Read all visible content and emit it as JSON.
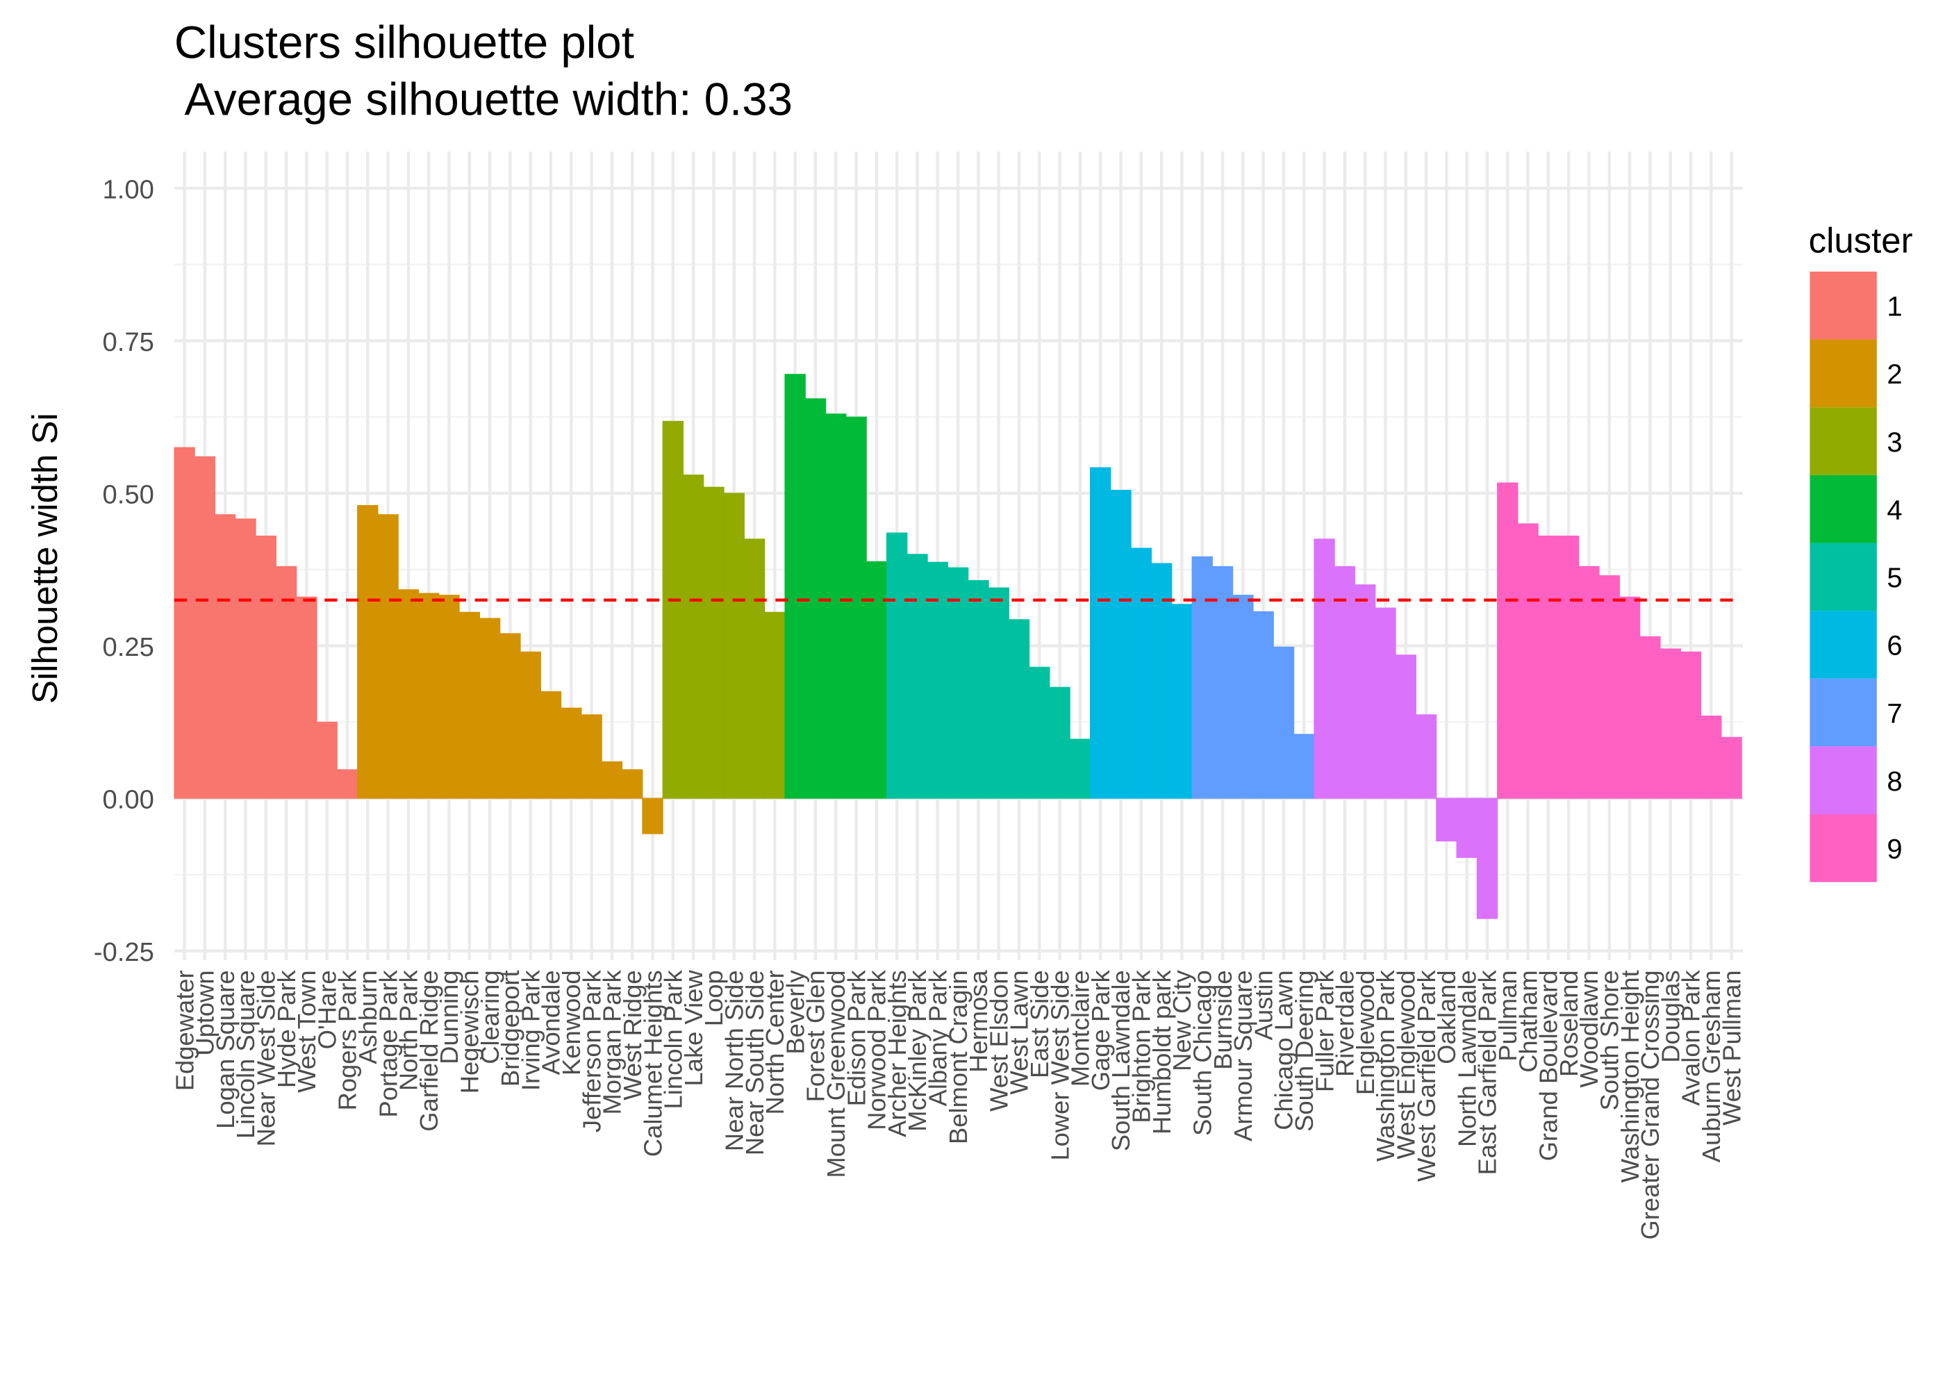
{
  "chart_data": {
    "type": "bar",
    "title": "Clusters silhouette plot",
    "subtitle": " Average silhouette width: 0.33",
    "y_label": "Silhouette width Si",
    "categories": [
      "Edgewater",
      "Uptown",
      "Logan Square",
      "Lincoln Square",
      "Near West Side",
      "Hyde Park",
      "West Town",
      "O'Hare",
      "Rogers Park",
      "Ashburn",
      "Portage Park",
      "North Park",
      "Garfield Ridge",
      "Dunning",
      "Hegewisch",
      "Clearing",
      "Bridgeport",
      "Irving Park",
      "Avondale",
      "Kenwood",
      "Jefferson Park",
      "Morgan Park",
      "West Ridge",
      "Calumet Heights",
      "Lincoln Park",
      "Lake View",
      "Loop",
      "Near North Side",
      "Near South Side",
      "North Center",
      "Beverly",
      "Forest Glen",
      "Mount Greenwood",
      "Edison Park",
      "Norwood Park",
      "Archer Heights",
      "McKinley Park",
      "Albany Park",
      "Belmont Cragin",
      "Hermosa",
      "West Elsdon",
      "West Lawn",
      "East Side",
      "Lower West Side",
      "Montclaire",
      "Gage Park",
      "South Lawndale",
      "Brighton Park",
      "Humboldt park",
      "New City",
      "South Chicago",
      "Burnside",
      "Armour Square",
      "Austin",
      "Chicago Lawn",
      "South Deering",
      "Fuller Park",
      "Riverdale",
      "Englewood",
      "Washington Park",
      "West Englewood",
      "West Garfield Park",
      "Oakland",
      "North Lawndale",
      "East Garfield Park",
      "Pullman",
      "Chatham",
      "Grand Boulevard",
      "Roseland",
      "Woodlawn",
      "South Shore",
      "Washington Height",
      "Greater Grand Crossing",
      "Douglas",
      "Avalon Park",
      "Auburn Gresham",
      "West Pullman"
    ],
    "values": [
      0.575,
      0.56,
      0.465,
      0.458,
      0.43,
      0.38,
      0.33,
      0.125,
      0.047,
      0.48,
      0.465,
      0.342,
      0.336,
      0.333,
      0.305,
      0.295,
      0.27,
      0.24,
      0.175,
      0.148,
      0.137,
      0.06,
      0.047,
      -0.058,
      0.618,
      0.53,
      0.51,
      0.5,
      0.425,
      0.305,
      0.695,
      0.655,
      0.63,
      0.625,
      0.388,
      0.435,
      0.4,
      0.387,
      0.378,
      0.357,
      0.345,
      0.293,
      0.215,
      0.182,
      0.097,
      0.542,
      0.505,
      0.41,
      0.385,
      0.318,
      0.396,
      0.38,
      0.333,
      0.306,
      0.248,
      0.105,
      0.425,
      0.38,
      0.35,
      0.312,
      0.235,
      0.137,
      -0.07,
      -0.097,
      -0.197,
      0.517,
      0.45,
      0.43,
      0.43,
      0.38,
      0.365,
      0.33,
      0.265,
      0.245,
      0.24,
      0.135,
      0.1
    ],
    "cluster": [
      0,
      0,
      0,
      0,
      0,
      0,
      0,
      0,
      0,
      1,
      1,
      1,
      1,
      1,
      1,
      1,
      1,
      1,
      1,
      1,
      1,
      1,
      1,
      1,
      2,
      2,
      2,
      2,
      2,
      2,
      3,
      3,
      3,
      3,
      3,
      4,
      4,
      4,
      4,
      4,
      4,
      4,
      4,
      4,
      4,
      5,
      5,
      5,
      5,
      5,
      6,
      6,
      6,
      6,
      6,
      6,
      7,
      7,
      7,
      7,
      7,
      7,
      7,
      7,
      7,
      8,
      8,
      8,
      8,
      8,
      8,
      8,
      8,
      8,
      8,
      8,
      8
    ],
    "legend_title": "cluster",
    "series": [
      {
        "name": "1",
        "color": "#F8766D"
      },
      {
        "name": "2",
        "color": "#D39200"
      },
      {
        "name": "3",
        "color": "#93AA00"
      },
      {
        "name": "4",
        "color": "#00BA38"
      },
      {
        "name": "5",
        "color": "#00C19F"
      },
      {
        "name": "6",
        "color": "#00B9E3"
      },
      {
        "name": "7",
        "color": "#619CFF"
      },
      {
        "name": "8",
        "color": "#DB72FB"
      },
      {
        "name": "9",
        "color": "#FF61C3"
      }
    ],
    "average_line": 0.325,
    "average_line_color": "#FF0000",
    "ylim": [
      -0.265,
      1.06
    ],
    "yticks": [
      {
        "value": -0.25,
        "label": "-0.25"
      },
      {
        "value": 0,
        "label": "0.00"
      },
      {
        "value": 0.25,
        "label": "0.25"
      },
      {
        "value": 0.5,
        "label": "0.50"
      },
      {
        "value": 0.75,
        "label": "0.75"
      },
      {
        "value": 1,
        "label": "1.00"
      }
    ],
    "grid": true
  }
}
